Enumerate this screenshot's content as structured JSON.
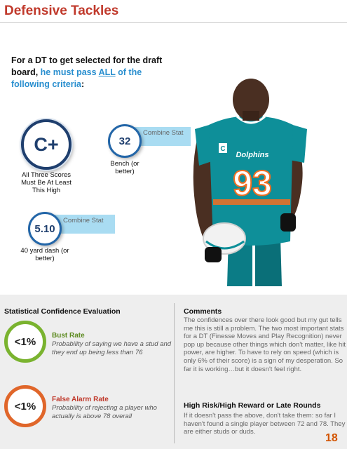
{
  "title": "Defensive Tackles",
  "intro": {
    "part1": "For a DT to get selected for the draft board, ",
    "part2": "he must pass ",
    "part3": "ALL",
    "part4": " of the following  criteria",
    "part5": ":"
  },
  "criteria": {
    "overall": {
      "value": "C+",
      "caption": "All Three Scores Must Be At Least This High"
    },
    "bench": {
      "value": "32",
      "tab": "Combine Stat",
      "caption": "Bench (or better)"
    },
    "dash": {
      "value": "5.10",
      "tab": "Combine Stat",
      "caption": "40 yard dash (or better)"
    }
  },
  "player": {
    "jersey_text": "Dolphins",
    "number": "93",
    "captain_patch": "C"
  },
  "stats": {
    "heading": "Statistical  Confidence Evaluation",
    "bust": {
      "value": "<1%",
      "title": "Bust Rate",
      "desc": "Probability of saying we  have a stud and they end up being less than 76"
    },
    "false_alarm": {
      "value": "<1%",
      "title": "False Alarm Rate",
      "desc": "Probability of rejecting a player who actually is above 78 overall"
    }
  },
  "comments": {
    "heading": "Comments",
    "body": "The confidences over there look good but my gut tells me this is still a problem. The two most important stats for a DT (Finesse Moves and Play Recognition) never pop up because other things which don't matter, like hit power, are higher. To have to rely on speed (which is only 6% of their score) is a sign of my desperation. So far it is working…but it doesn't feel right."
  },
  "risk": {
    "heading": "High Risk/High Reward or Late Rounds",
    "body": "If it doesn't pass the above, don't take them: so far I haven't found a single player between 72 and 78. They are either studs or duds."
  },
  "page_number": "18",
  "colors": {
    "title": "#c0392b",
    "accent_blue": "#2a8fcf",
    "badge_navy": "#1f3f6e",
    "tab_blue": "#a9dcf2",
    "bust_green": "#7ab32f",
    "false_alarm_orange": "#e0662a",
    "page_number": "#d35400"
  }
}
